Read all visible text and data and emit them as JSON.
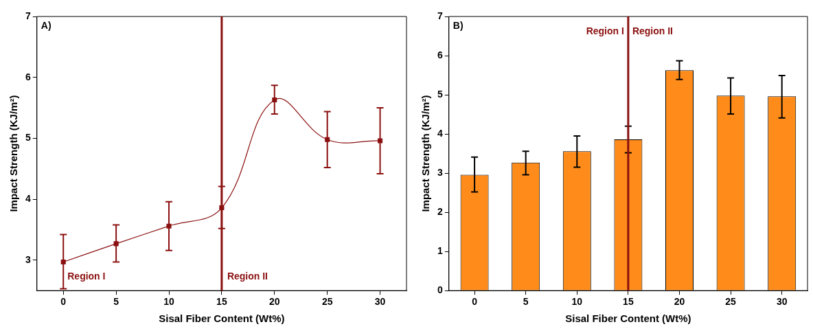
{
  "chart_data": [
    {
      "type": "line",
      "title": "A)",
      "xlabel": "Sisal Fiber Content (Wt%)",
      "ylabel": "Impact Strength (KJ/m²)",
      "x": [
        0,
        5,
        10,
        15,
        20,
        25,
        30
      ],
      "series": [
        {
          "color": "#8b1010",
          "values": [
            2.97,
            3.27,
            3.56,
            3.86,
            5.63,
            4.98,
            4.96
          ],
          "errors": [
            [
              2.53,
              3.42
            ],
            [
              2.97,
              3.58
            ],
            [
              3.16,
              3.96
            ],
            [
              3.52,
              4.21
            ],
            [
              5.4,
              5.87
            ],
            [
              4.52,
              5.44
            ],
            [
              4.42,
              5.5
            ]
          ]
        }
      ],
      "xlim": [
        -2.5,
        32.5
      ],
      "xticks": [
        0,
        5,
        10,
        15,
        20,
        25,
        30
      ],
      "ylim": [
        2.5,
        7
      ],
      "yticks": [
        3,
        4,
        5,
        6,
        7
      ],
      "marker": "square",
      "line_style": "solid",
      "grid": false,
      "legend": false,
      "ref_lines": [
        {
          "axis": "x",
          "value": 15,
          "color": "#8b1010"
        }
      ],
      "annotations": [
        "Region I",
        "Region II"
      ]
    },
    {
      "type": "bar",
      "title": "B)",
      "xlabel": "Sisal Fiber Content (Wt%)",
      "ylabel": "Impact Strength (KJ/m²)",
      "categories": [
        "0",
        "5",
        "10",
        "15",
        "20",
        "25",
        "30"
      ],
      "series": [
        {
          "color": "#ff8c1a",
          "values": [
            2.96,
            3.27,
            3.56,
            3.86,
            5.63,
            4.98,
            4.96
          ],
          "errors": [
            [
              2.52,
              3.41
            ],
            [
              2.96,
              3.56
            ],
            [
              3.15,
              3.95
            ],
            [
              3.52,
              4.2
            ],
            [
              5.39,
              5.87
            ],
            [
              4.51,
              5.43
            ],
            [
              4.41,
              5.49
            ]
          ]
        }
      ],
      "ylim": [
        0,
        7
      ],
      "yticks": [
        0,
        1,
        2,
        3,
        4,
        5,
        6,
        7
      ],
      "grid": false,
      "legend": false,
      "ref_lines": [
        {
          "axis": "x",
          "value": "15",
          "color": "#8b1010"
        }
      ],
      "annotations": [
        "Region I",
        "Region II"
      ]
    }
  ]
}
